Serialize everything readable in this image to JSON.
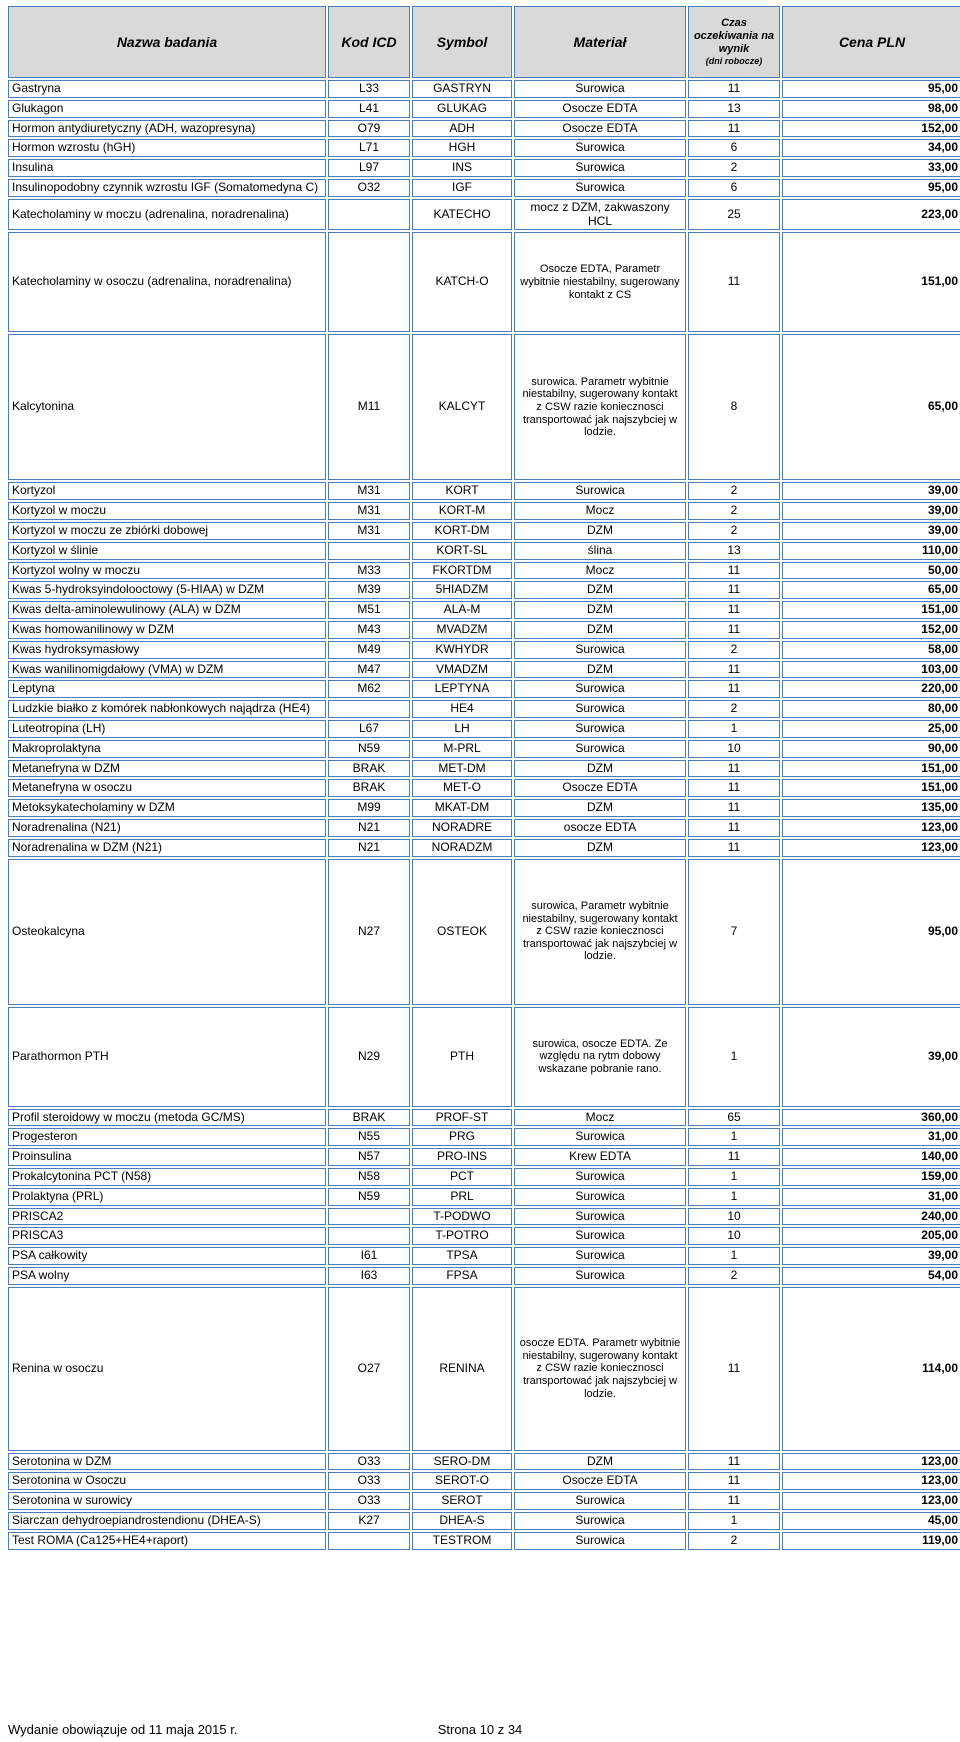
{
  "columns": {
    "nazwa": "Nazwa badania",
    "kod": "Kod ICD",
    "symbol": "Symbol",
    "material": "Materiał",
    "czas": "Czas oczekiwania na wynik",
    "czas_sub": "(dni robocze)",
    "cena": "Cena PLN"
  },
  "col_widths": {
    "nazwa": 318,
    "kod": 82,
    "symbol": 100,
    "material": 172,
    "czas": 92,
    "cena": 180
  },
  "rows": [
    {
      "nazwa": "Gastryna",
      "kod": "L33",
      "symbol": "GASTRYN",
      "material": "Surowica",
      "czas": "11",
      "cena": "95,00"
    },
    {
      "nazwa": "Glukagon",
      "kod": "L41",
      "symbol": "GLUKAG",
      "material": "Osocze EDTA",
      "czas": "13",
      "cena": "98,00"
    },
    {
      "nazwa": "Hormon antydiuretyczny (ADH, wazopresyna)",
      "kod": "O79",
      "symbol": "ADH",
      "material": "Osocze EDTA",
      "czas": "11",
      "cena": "152,00"
    },
    {
      "nazwa": "Hormon wzrostu (hGH)",
      "kod": "L71",
      "symbol": "HGH",
      "material": "Surowica",
      "czas": "6",
      "cena": "34,00"
    },
    {
      "nazwa": "Insulina",
      "kod": "L97",
      "symbol": "INS",
      "material": "Surowica",
      "czas": "2",
      "cena": "33,00"
    },
    {
      "nazwa": "Insulinopodobny czynnik wzrostu IGF (Somatomedyna C)",
      "kod": "O32",
      "symbol": "IGF",
      "material": "Surowica",
      "czas": "6",
      "cena": "95,00"
    },
    {
      "nazwa": "Katecholaminy w moczu (adrenalina, noradrenalina)",
      "kod": "",
      "symbol": "KATECHO",
      "material": "mocz z DZM, zakwaszony HCL",
      "czas": "25",
      "cena": "223,00"
    },
    {
      "nazwa": "Katecholaminy w osoczu (adrenalina, noradrenalina)",
      "kod": "",
      "symbol": "KATCH-O",
      "material": "Osocze EDTA,  Parametr wybitnie niestabilny, sugerowany kontakt z CS",
      "czas": "11",
      "cena": "151,00",
      "height": "tall"
    },
    {
      "nazwa": "Kalcytonina",
      "kod": "M11",
      "symbol": "KALCYT",
      "material": "surowica. Parametr wybitnie niestabilny, sugerowany kontakt z CSW razie koniecznosci transportować jak najszybciej w lodzie.",
      "czas": "8",
      "cena": "65,00",
      "height": "vtall"
    },
    {
      "nazwa": "Kortyzol",
      "kod": "M31",
      "symbol": "KORT",
      "material": "Surowica",
      "czas": "2",
      "cena": "39,00"
    },
    {
      "nazwa": "Kortyzol w moczu",
      "kod": "M31",
      "symbol": "KORT-M",
      "material": "Mocz",
      "czas": "2",
      "cena": "39,00"
    },
    {
      "nazwa": "Kortyzol w moczu ze zbiórki dobowej",
      "kod": "M31",
      "symbol": "KORT-DM",
      "material": "DZM",
      "czas": "2",
      "cena": "39,00"
    },
    {
      "nazwa": "Kortyzol w ślinie",
      "kod": "",
      "symbol": "KORT-SL",
      "material": "ślina",
      "czas": "13",
      "cena": "110,00"
    },
    {
      "nazwa": "Kortyzol wolny  w moczu",
      "kod": "M33",
      "symbol": "FKORTDM",
      "material": "Mocz",
      "czas": "11",
      "cena": "50,00"
    },
    {
      "nazwa": "Kwas 5-hydroksyindolooctowy (5-HIAA) w DZM",
      "kod": "M39",
      "symbol": "5HIADZM",
      "material": "DZM",
      "czas": "11",
      "cena": "65,00"
    },
    {
      "nazwa": "Kwas delta-aminolewulinowy (ALA) w DZM",
      "kod": "M51",
      "symbol": "ALA-M",
      "material": "DZM",
      "czas": "11",
      "cena": "151,00"
    },
    {
      "nazwa": "Kwas homowanilinowy w DZM",
      "kod": "M43",
      "symbol": "MVADZM",
      "material": "DZM",
      "czas": "11",
      "cena": "152,00"
    },
    {
      "nazwa": "Kwas hydroksymasłowy",
      "kod": "M49",
      "symbol": "KWHYDR",
      "material": "Surowica",
      "czas": "2",
      "cena": "58,00"
    },
    {
      "nazwa": "Kwas wanilinomigdałowy (VMA) w DZM",
      "kod": "M47",
      "symbol": "VMADZM",
      "material": "DZM",
      "czas": "11",
      "cena": "103,00"
    },
    {
      "nazwa": "Leptyna",
      "kod": "M62",
      "symbol": "LEPTYNA",
      "material": "Surowica",
      "czas": "11",
      "cena": "220,00"
    },
    {
      "nazwa": "Ludzkie białko z komórek nabłonkowych najądrza (HE4)",
      "kod": "",
      "symbol": "HE4",
      "material": "Surowica",
      "czas": "2",
      "cena": "80,00",
      "height": "med"
    },
    {
      "nazwa": "Luteotropina (LH)",
      "kod": "L67",
      "symbol": "LH",
      "material": "Surowica",
      "czas": "1",
      "cena": "25,00"
    },
    {
      "nazwa": "Makroprolaktyna",
      "kod": "N59",
      "symbol": "M-PRL",
      "material": "Surowica",
      "czas": "10",
      "cena": "90,00"
    },
    {
      "nazwa": "Metanefryna w DZM",
      "kod": "BRAK",
      "symbol": "MET-DM",
      "material": "DZM",
      "czas": "11",
      "cena": "151,00"
    },
    {
      "nazwa": "Metanefryna w osoczu",
      "kod": "BRAK",
      "symbol": "MET-O",
      "material": "Osocze EDTA",
      "czas": "11",
      "cena": "151,00"
    },
    {
      "nazwa": "Metoksykatecholaminy w DZM",
      "kod": "M99",
      "symbol": "MKAT-DM",
      "material": "DZM",
      "czas": "11",
      "cena": "135,00"
    },
    {
      "nazwa": "Noradrenalina (N21)",
      "kod": "N21",
      "symbol": "NORADRE",
      "material": "osocze EDTA",
      "czas": "11",
      "cena": "123,00"
    },
    {
      "nazwa": "Noradrenalina w DZM (N21)",
      "kod": "N21",
      "symbol": "NORADZM",
      "material": "DZM",
      "czas": "11",
      "cena": "123,00"
    },
    {
      "nazwa": "Osteokalcyna",
      "kod": "N27",
      "symbol": "OSTEOK",
      "material": "surowica, Parametr wybitnie niestabilny, sugerowany kontakt z CSW razie koniecznosci transportować jak najszybciej w lodzie.",
      "czas": "7",
      "cena": "95,00",
      "height": "vtall"
    },
    {
      "nazwa": "Parathormon PTH",
      "kod": "N29",
      "symbol": "PTH",
      "material": "surowica, osocze EDTA. Ze względu na rytm dobowy wskazane pobranie rano.",
      "czas": "1",
      "cena": "39,00",
      "height": "tall"
    },
    {
      "nazwa": "Profil steroidowy w moczu (metoda GC/MS)",
      "kod": "BRAK",
      "symbol": "PROF-ST",
      "material": "Mocz",
      "czas": "65",
      "cena": "360,00"
    },
    {
      "nazwa": "Progesteron",
      "kod": "N55",
      "symbol": "PRG",
      "material": "Surowica",
      "czas": "1",
      "cena": "31,00"
    },
    {
      "nazwa": "Proinsulina",
      "kod": "N57",
      "symbol": "PRO-INS",
      "material": "Krew EDTA",
      "czas": "11",
      "cena": "140,00"
    },
    {
      "nazwa": "Prokalcytonina PCT (N58)",
      "kod": "N58",
      "symbol": "PCT",
      "material": "Surowica",
      "czas": "1",
      "cena": "159,00"
    },
    {
      "nazwa": "Prolaktyna (PRL)",
      "kod": "N59",
      "symbol": "PRL",
      "material": "Surowica",
      "czas": "1",
      "cena": "31,00"
    },
    {
      "nazwa": "PRISCA2",
      "kod": "",
      "symbol": "T-PODWO",
      "material": "Surowica",
      "czas": "10",
      "cena": "240,00"
    },
    {
      "nazwa": "PRISCA3",
      "kod": "",
      "symbol": "T-POTRO",
      "material": "Surowica",
      "czas": "10",
      "cena": "205,00"
    },
    {
      "nazwa": "PSA całkowity",
      "kod": "I61",
      "symbol": "TPSA",
      "material": "Surowica",
      "czas": "1",
      "cena": "39,00"
    },
    {
      "nazwa": "PSA wolny",
      "kod": "I63",
      "symbol": "FPSA",
      "material": "Surowica",
      "czas": "2",
      "cena": "54,00"
    },
    {
      "nazwa": "Renina w osoczu",
      "kod": "O27",
      "symbol": "RENINA",
      "material": "osocze EDTA. Parametr wybitnie niestabilny, sugerowany kontakt z CSW razie koniecznosci transportować jak najszybciej w lodzie.",
      "czas": "11",
      "cena": "114,00",
      "height": "xtall"
    },
    {
      "nazwa": "Serotonina w DZM",
      "kod": "O33",
      "symbol": "SERO-DM",
      "material": "DZM",
      "czas": "11",
      "cena": "123,00"
    },
    {
      "nazwa": "Serotonina w Osoczu",
      "kod": "O33",
      "symbol": "SEROT-O",
      "material": "Osocze EDTA",
      "czas": "11",
      "cena": "123,00"
    },
    {
      "nazwa": "Serotonina w surowicy",
      "kod": "O33",
      "symbol": "SEROT",
      "material": "Surowica",
      "czas": "11",
      "cena": "123,00"
    },
    {
      "nazwa": "Siarczan dehydroepiandrostendionu (DHEA-S)",
      "kod": "K27",
      "symbol": "DHEA-S",
      "material": "Surowica",
      "czas": "1",
      "cena": "45,00"
    },
    {
      "nazwa": "Test ROMA (Ca125+HE4+raport)",
      "kod": "",
      "symbol": "TESTROM",
      "material": "Surowica",
      "czas": "2",
      "cena": "119,00"
    }
  ],
  "footer": {
    "left": "Wydanie  obowiązuje od 11 maja 2015 r.",
    "center": "Strona 10 z 34"
  }
}
